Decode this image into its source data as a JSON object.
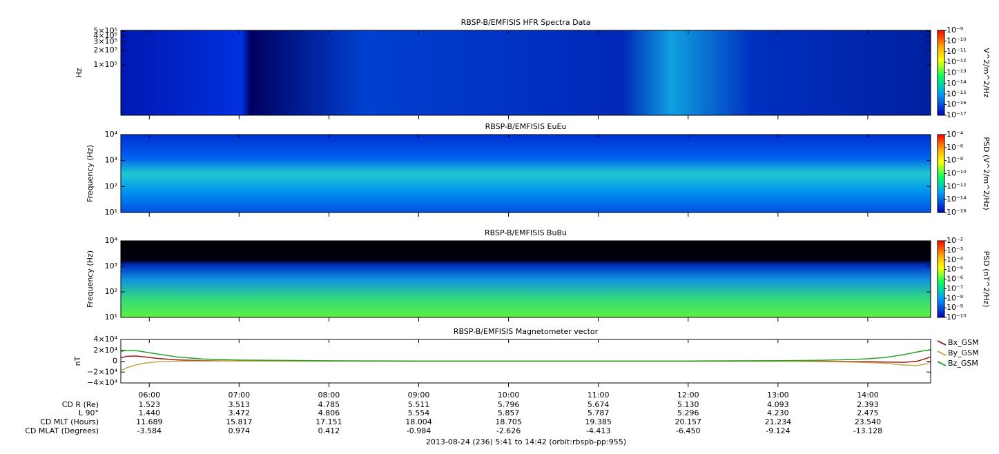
{
  "chart_data": [
    {
      "type": "spectrogram",
      "title": "RBSP-B/EMFISIS  HFR Spectra Data",
      "ylabel": "Hz",
      "log_y": true,
      "ylim": [
        9000,
        520000
      ],
      "yticks": [
        {
          "value": 500000,
          "label": "5×10⁵"
        },
        {
          "value": 400000,
          "label": "4×10⁵"
        },
        {
          "value": 300000,
          "label": "3×10⁵"
        },
        {
          "value": 200000,
          "label": "2×10⁵"
        },
        {
          "value": 100000,
          "label": "1×10⁵"
        }
      ],
      "xlim": [
        5.683,
        14.7
      ],
      "xticks": [
        6,
        7,
        8,
        9,
        10,
        11,
        12,
        13,
        14
      ],
      "colorbar_label": "V^2/m^2/Hz",
      "zlim": [
        1e-17,
        1e-09
      ],
      "colorbar_ticks": [
        {
          "value": 1e-09,
          "label": "10⁻⁹"
        },
        {
          "value": 1e-10,
          "label": "10⁻¹⁰"
        },
        {
          "value": 1e-11,
          "label": "10⁻¹¹"
        },
        {
          "value": 1e-12,
          "label": "10⁻¹²"
        },
        {
          "value": 1e-13,
          "label": "10⁻¹³"
        },
        {
          "value": 1e-14,
          "label": "10⁻¹⁴"
        },
        {
          "value": 1e-15,
          "label": "10⁻¹⁵"
        },
        {
          "value": 1e-16,
          "label": "10⁻¹⁶"
        },
        {
          "value": 1e-17,
          "label": "10⁻¹⁷"
        }
      ]
    },
    {
      "type": "spectrogram",
      "title": "RBSP-B/EMFISIS  EuEu",
      "ylabel": "Frequency (Hz)",
      "log_y": true,
      "ylim": [
        10,
        10000
      ],
      "yticks": [
        {
          "value": 10000,
          "label": "10⁴"
        },
        {
          "value": 1000,
          "label": "10³"
        },
        {
          "value": 100,
          "label": "10²"
        },
        {
          "value": 10,
          "label": "10¹"
        }
      ],
      "xlim": [
        5.683,
        14.7
      ],
      "xticks": [
        6,
        7,
        8,
        9,
        10,
        11,
        12,
        13,
        14
      ],
      "colorbar_label": "PSD (V^2/m^2/Hz)",
      "zlim": [
        1e-16,
        0.0001
      ],
      "colorbar_ticks": [
        {
          "value": 0.0001,
          "label": "10⁻⁴"
        },
        {
          "value": 1e-06,
          "label": "10⁻⁶"
        },
        {
          "value": 1e-08,
          "label": "10⁻⁸"
        },
        {
          "value": 1e-10,
          "label": "10⁻¹⁰"
        },
        {
          "value": 1e-12,
          "label": "10⁻¹²"
        },
        {
          "value": 1e-14,
          "label": "10⁻¹⁴"
        },
        {
          "value": 1e-16,
          "label": "10⁻¹⁶"
        }
      ]
    },
    {
      "type": "spectrogram",
      "title": "RBSP-B/EMFISIS  BuBu",
      "ylabel": "Frequency (Hz)",
      "log_y": true,
      "ylim": [
        10,
        10000
      ],
      "yticks": [
        {
          "value": 10000,
          "label": "10⁴"
        },
        {
          "value": 1000,
          "label": "10³"
        },
        {
          "value": 100,
          "label": "10²"
        },
        {
          "value": 10,
          "label": "10¹"
        }
      ],
      "xlim": [
        5.683,
        14.7
      ],
      "xticks": [
        6,
        7,
        8,
        9,
        10,
        11,
        12,
        13,
        14
      ],
      "colorbar_label": "PSD (nT^2/Hz)",
      "zlim": [
        1e-10,
        0.01
      ],
      "colorbar_ticks": [
        {
          "value": 0.01,
          "label": "10⁻²"
        },
        {
          "value": 0.001,
          "label": "10⁻³"
        },
        {
          "value": 0.0001,
          "label": "10⁻⁴"
        },
        {
          "value": 1e-05,
          "label": "10⁻⁵"
        },
        {
          "value": 1e-06,
          "label": "10⁻⁶"
        },
        {
          "value": 1e-07,
          "label": "10⁻⁷"
        },
        {
          "value": 1e-08,
          "label": "10⁻⁸"
        },
        {
          "value": 1e-09,
          "label": "10⁻⁹"
        },
        {
          "value": 1e-10,
          "label": "10⁻¹⁰"
        }
      ]
    },
    {
      "type": "line",
      "title": "RBSP-B/EMFISIS  Magnetometer vector",
      "ylabel": "nT",
      "ylim": [
        -40000,
        40000
      ],
      "yticks": [
        {
          "value": 40000,
          "label": "4×10⁴"
        },
        {
          "value": 20000,
          "label": "2×10⁴"
        },
        0,
        {
          "value": -20000,
          "label": "−2×10⁴"
        },
        {
          "value": -40000,
          "label": "−4×10⁴"
        }
      ],
      "xlim": [
        5.683,
        14.7
      ],
      "xticks": [
        {
          "value": 6,
          "label": "06:00"
        },
        {
          "value": 7,
          "label": "07:00"
        },
        {
          "value": 8,
          "label": "08:00"
        },
        {
          "value": 9,
          "label": "09:00"
        },
        {
          "value": 10,
          "label": "10:00"
        },
        {
          "value": 11,
          "label": "11:00"
        },
        {
          "value": 12,
          "label": "12:00"
        },
        {
          "value": 13,
          "label": "13:00"
        },
        {
          "value": 14,
          "label": "14:00"
        }
      ],
      "legend": "right",
      "x": [
        5.683,
        5.75,
        5.85,
        5.95,
        6.1,
        6.3,
        6.6,
        7.0,
        8,
        9,
        10,
        11,
        12,
        13,
        13.5,
        13.8,
        14.0,
        14.2,
        14.4,
        14.55,
        14.65,
        14.7
      ],
      "series": [
        {
          "name": "Bx_GSM",
          "color": "#9a1c1c",
          "values": [
            6000,
            9000,
            9500,
            8000,
            5000,
            2500,
            1000,
            400,
            100,
            0,
            0,
            0,
            0,
            -100,
            -300,
            -600,
            -1000,
            -1500,
            -2000,
            0,
            5000,
            8000
          ]
        },
        {
          "name": "By_GSM",
          "color": "#c9a54a",
          "values": [
            -17000,
            -12000,
            -7000,
            -3500,
            -1000,
            0,
            300,
            200,
            100,
            0,
            0,
            0,
            0,
            -200,
            -700,
            -1500,
            -2500,
            -4000,
            -7000,
            -8000,
            -5000,
            -1000
          ]
        },
        {
          "name": "Bz_GSM",
          "color": "#2ca02c",
          "values": [
            18000,
            20000,
            19500,
            17000,
            13000,
            8000,
            4000,
            2000,
            800,
            400,
            300,
            300,
            400,
            900,
            1800,
            3000,
            4500,
            7000,
            12000,
            17000,
            20000,
            21000
          ]
        }
      ]
    }
  ],
  "ephemeris": {
    "rows": [
      {
        "label": "CD R (Re)",
        "values": [
          "1.523",
          "3.513",
          "4.785",
          "5.511",
          "5.796",
          "5.674",
          "5.130",
          "4.093",
          "2.393"
        ]
      },
      {
        "label": "L 90°",
        "values": [
          "1.440",
          "3.472",
          "4.806",
          "5.554",
          "5.857",
          "5.787",
          "5.296",
          "4.230",
          "2.475"
        ]
      },
      {
        "label": "CD MLT (Hours)",
        "values": [
          "11.689",
          "15.817",
          "17.151",
          "18.004",
          "18.705",
          "19.385",
          "20.157",
          "21.234",
          "23.540"
        ]
      },
      {
        "label": "CD MLAT (Degrees)",
        "values": [
          "-3.584",
          "0.974",
          "0.412",
          "-0.984",
          "-2.626",
          "-4.413",
          "-6.450",
          "-9.124",
          "-13.128"
        ]
      }
    ]
  },
  "footer": "2013-08-24 (236) 5:41 to 14:42 (orbit:rbspb-pp:955)"
}
